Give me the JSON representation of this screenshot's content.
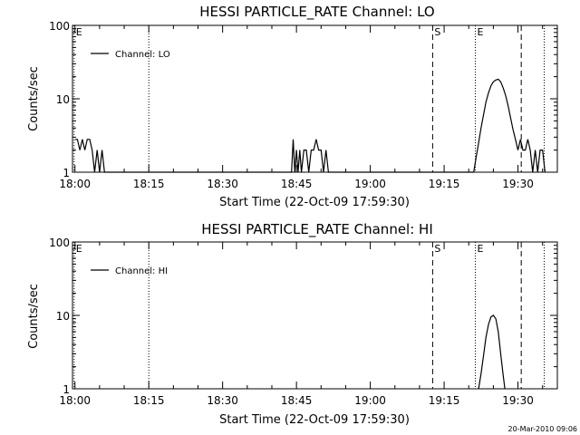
{
  "chart_data": [
    {
      "type": "line",
      "title": "HESSI PARTICLE_RATE Channel: LO",
      "xlabel": "Start Time (22-Oct-09 17:59:30)",
      "ylabel": "Counts/sec",
      "y_scale": "log",
      "ylim": [
        1,
        100
      ],
      "xlim": [
        "17:59:30",
        "19:38:00"
      ],
      "x_ticks": [
        "18:00",
        "18:15",
        "18:30",
        "18:45",
        "19:00",
        "19:15",
        "19:30"
      ],
      "y_ticks": [
        "1",
        "10",
        "100"
      ],
      "grid": false,
      "legend_position": "top-left",
      "series": [
        {
          "name": "Channel: LO",
          "points": [
            [
              "18:00:00",
              2.8
            ],
            [
              "18:00:30",
              2.8
            ],
            [
              "18:01:00",
              2.0
            ],
            [
              "18:01:30",
              2.8
            ],
            [
              "18:02:00",
              2.0
            ],
            [
              "18:02:30",
              2.8
            ],
            [
              "18:03:00",
              2.8
            ],
            [
              "18:03:30",
              2.0
            ],
            [
              "18:04:00",
              1.0
            ],
            [
              "18:04:30",
              2.0
            ],
            [
              "18:05:00",
              1.0
            ],
            [
              "18:05:30",
              2.0
            ],
            [
              "18:06:00",
              1.0
            ],
            [
              "18:44:00",
              1.0
            ],
            [
              "18:44:20",
              2.8
            ],
            [
              "18:44:40",
              1.0
            ],
            [
              "18:45:00",
              2.0
            ],
            [
              "18:45:20",
              1.0
            ],
            [
              "18:45:40",
              2.0
            ],
            [
              "18:46:00",
              1.0
            ],
            [
              "18:46:30",
              2.0
            ],
            [
              "18:47:00",
              2.0
            ],
            [
              "18:47:30",
              1.0
            ],
            [
              "18:48:00",
              2.0
            ],
            [
              "18:48:30",
              2.0
            ],
            [
              "18:49:00",
              2.8
            ],
            [
              "18:49:30",
              2.0
            ],
            [
              "18:50:00",
              2.0
            ],
            [
              "18:50:30",
              1.0
            ],
            [
              "18:51:00",
              2.0
            ],
            [
              "18:51:30",
              1.0
            ],
            [
              "19:21:00",
              1.0
            ],
            [
              "19:21:30",
              1.6
            ],
            [
              "19:22:00",
              2.5
            ],
            [
              "19:22:30",
              4.0
            ],
            [
              "19:23:00",
              6.0
            ],
            [
              "19:23:30",
              9.0
            ],
            [
              "19:24:00",
              12.0
            ],
            [
              "19:24:30",
              15.0
            ],
            [
              "19:25:00",
              17.0
            ],
            [
              "19:25:30",
              18.0
            ],
            [
              "19:26:00",
              18.5
            ],
            [
              "19:26:30",
              17.0
            ],
            [
              "19:27:00",
              14.0
            ],
            [
              "19:27:30",
              11.0
            ],
            [
              "19:28:00",
              8.0
            ],
            [
              "19:28:30",
              5.5
            ],
            [
              "19:29:00",
              3.8
            ],
            [
              "19:29:30",
              2.8
            ],
            [
              "19:30:00",
              2.0
            ],
            [
              "19:30:30",
              2.8
            ],
            [
              "19:31:00",
              2.0
            ],
            [
              "19:31:30",
              2.0
            ],
            [
              "19:32:00",
              2.8
            ],
            [
              "19:32:30",
              2.0
            ],
            [
              "19:33:00",
              1.0
            ],
            [
              "19:33:30",
              2.0
            ],
            [
              "19:34:00",
              1.0
            ],
            [
              "19:34:30",
              2.0
            ],
            [
              "19:35:00",
              2.0
            ],
            [
              "19:35:30",
              1.0
            ]
          ]
        }
      ],
      "markers": [
        {
          "time": "17:59:50",
          "style": "dotted",
          "label": "E"
        },
        {
          "time": "18:15:00",
          "style": "dotted",
          "label": ""
        },
        {
          "time": "19:12:40",
          "style": "dashed",
          "label": "S"
        },
        {
          "time": "19:21:20",
          "style": "dotted",
          "label": "E"
        },
        {
          "time": "19:30:40",
          "style": "dashed",
          "label": ""
        },
        {
          "time": "19:35:20",
          "style": "dotted",
          "label": ""
        }
      ]
    },
    {
      "type": "line",
      "title": "HESSI PARTICLE_RATE Channel: HI",
      "xlabel": "Start Time (22-Oct-09 17:59:30)",
      "ylabel": "Counts/sec",
      "y_scale": "log",
      "ylim": [
        1,
        100
      ],
      "xlim": [
        "17:59:30",
        "19:38:00"
      ],
      "x_ticks": [
        "18:00",
        "18:15",
        "18:30",
        "18:45",
        "19:00",
        "19:15",
        "19:30"
      ],
      "y_ticks": [
        "1",
        "10",
        "100"
      ],
      "grid": false,
      "legend_position": "top-left",
      "series": [
        {
          "name": "Channel: HI",
          "points": [
            [
              "19:22:00",
              1.0
            ],
            [
              "19:22:30",
              1.6
            ],
            [
              "19:23:00",
              2.8
            ],
            [
              "19:23:30",
              5.0
            ],
            [
              "19:24:00",
              7.5
            ],
            [
              "19:24:30",
              9.5
            ],
            [
              "19:25:00",
              10.0
            ],
            [
              "19:25:30",
              9.0
            ],
            [
              "19:26:00",
              6.0
            ],
            [
              "19:26:30",
              3.0
            ],
            [
              "19:27:00",
              1.5
            ],
            [
              "19:27:20",
              1.0
            ]
          ]
        }
      ],
      "markers": [
        {
          "time": "17:59:50",
          "style": "dotted",
          "label": "E"
        },
        {
          "time": "18:15:00",
          "style": "dotted",
          "label": ""
        },
        {
          "time": "19:12:40",
          "style": "dashed",
          "label": "S"
        },
        {
          "time": "19:21:20",
          "style": "dotted",
          "label": "E"
        },
        {
          "time": "19:30:40",
          "style": "dashed",
          "label": ""
        },
        {
          "time": "19:35:20",
          "style": "dotted",
          "label": ""
        }
      ]
    }
  ],
  "footer": {
    "timestamp": "20-Mar-2010 09:06"
  },
  "colors": {
    "background": "#ffffff",
    "line": "#000000"
  }
}
